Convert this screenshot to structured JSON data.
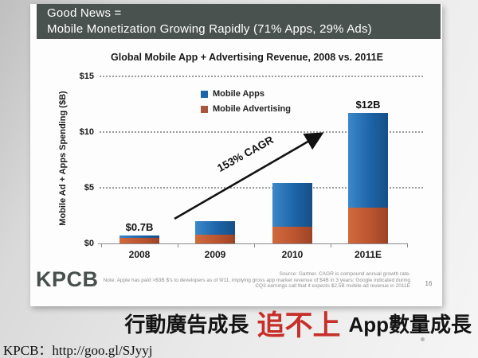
{
  "slide": {
    "header": {
      "line1": "Good News =",
      "line2": "Mobile Monetization Growing Rapidly (71% Apps, 29% Ads)"
    },
    "logo": "KPCB",
    "page_number": "16",
    "notes": {
      "line1": "Source: Gartner. CAGR is compound annual growth rate.",
      "line2": "Note: Apple has paid >$3B $'s to developers as of 9/11, implying gross app market revenue of $4B in 3 years; Google indicated during",
      "line3": "CQ3 earnings call that it expects $2.5B mobile ad revenue in 2011E"
    }
  },
  "chart_data": {
    "type": "bar",
    "stacked": true,
    "title": "Global Mobile App + Advertising Revenue, 2008 vs. 2011E",
    "ylabel": "Mobile Ad + Apps Spending ($B)",
    "xlabel": "",
    "categories": [
      "2008",
      "2009",
      "2010",
      "2011E"
    ],
    "series": [
      {
        "name": "Mobile Advertising",
        "color": "#bc5530",
        "values": [
          0.5,
          0.8,
          1.5,
          3.2
        ]
      },
      {
        "name": "Mobile Apps",
        "color": "#1d64a8",
        "values": [
          0.2,
          1.2,
          3.9,
          8.5
        ]
      }
    ],
    "totals": [
      0.7,
      2.0,
      5.4,
      11.7
    ],
    "ylim": [
      0,
      15
    ],
    "yticks": [
      {
        "label": "$0",
        "value": 0
      },
      {
        "label": "$5",
        "value": 5
      },
      {
        "label": "$10",
        "value": 10
      },
      {
        "label": "$15",
        "value": 15
      }
    ],
    "grid": "horizontal-dotted",
    "legend_position": "upper-center",
    "legend": [
      {
        "label": "Mobile Apps",
        "color": "#1d64a8"
      },
      {
        "label": "Mobile Advertising",
        "color": "#a8563e"
      }
    ],
    "bar_labels": [
      {
        "category": "2008",
        "text": "$0.7B"
      },
      {
        "category": "2011E",
        "text": "$12B"
      }
    ],
    "annotation": "153% CAGR"
  },
  "caption": {
    "black_left": "行動廣告成長",
    "red_highlight": "追不上",
    "black_right": "App數量成長"
  },
  "footer": {
    "url_text": "KPCB：http://goo.gl/SJyyj"
  }
}
